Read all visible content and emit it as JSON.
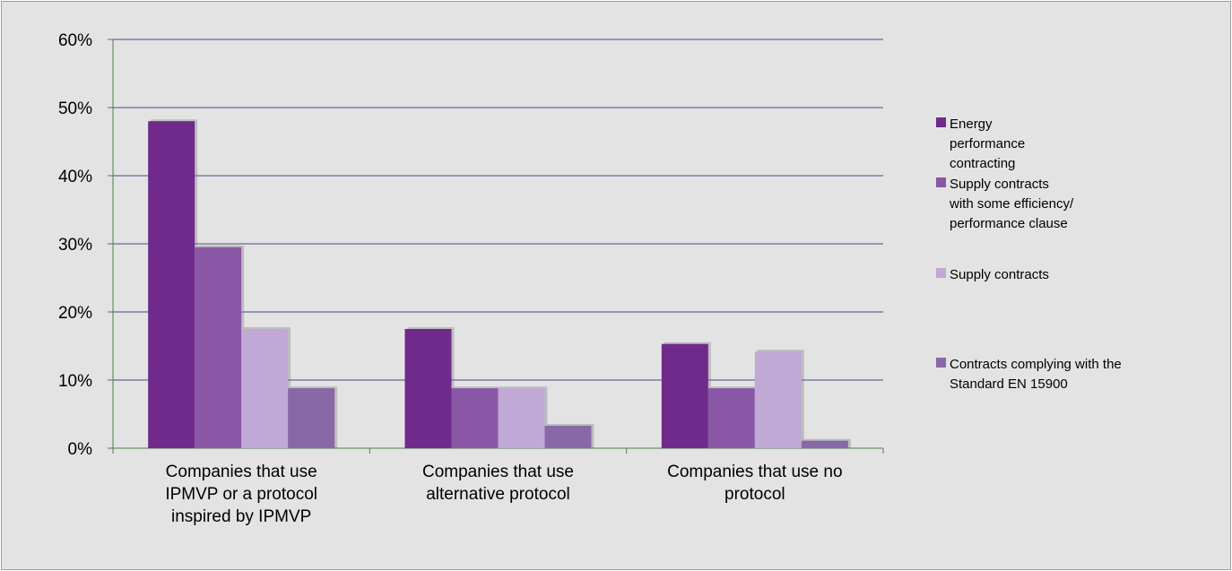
{
  "chart_data": {
    "type": "bar",
    "title": "",
    "xlabel": "",
    "ylabel": "",
    "ylim": [
      0,
      0.6
    ],
    "yticks": [
      "0%",
      "10%",
      "20%",
      "30%",
      "40%",
      "50%",
      "60%"
    ],
    "grid": true,
    "legend_position": "right",
    "categories": [
      [
        "Companies that use",
        "IPMVP or a protocol",
        "inspired by IPMVP"
      ],
      [
        "Companies that use",
        "alternative protocol"
      ],
      [
        "Companies that use no",
        "protocol"
      ]
    ],
    "series": [
      {
        "name": [
          "Energy",
          "performance",
          "contracting"
        ],
        "color": "#6f2a8c",
        "values": [
          0.48,
          0.175,
          0.153
        ]
      },
      {
        "name": [
          "Supply contracts",
          "with some efficiency/",
          "performance clause"
        ],
        "color": "#8a56a6",
        "values": [
          0.295,
          0.088,
          0.088
        ]
      },
      {
        "name": [
          "Supply contracts"
        ],
        "color": "#c0a9d5",
        "values": [
          0.175,
          0.088,
          0.142
        ]
      },
      {
        "name": [
          "Contracts complying with the",
          "Standard EN 15900"
        ],
        "color": "#8868a6",
        "values": [
          0.088,
          0.033,
          0.011
        ]
      }
    ]
  }
}
